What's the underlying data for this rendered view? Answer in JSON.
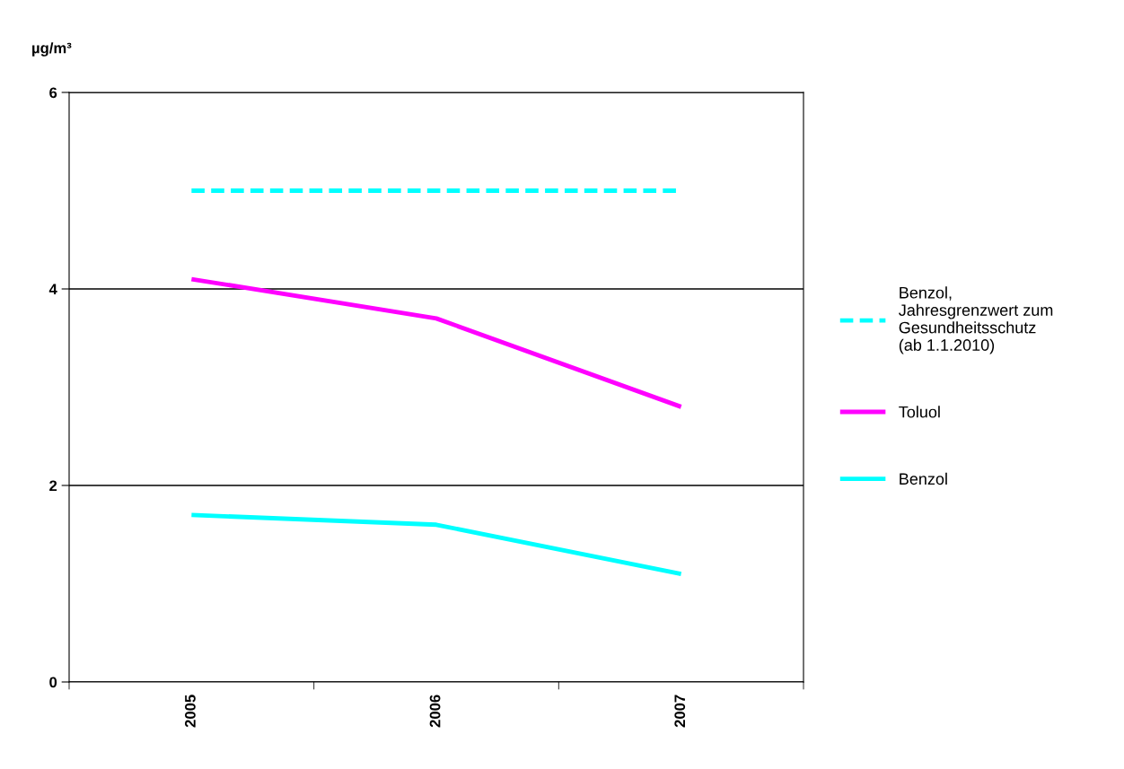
{
  "chart_data": {
    "type": "line",
    "ylabel": "µg/m³",
    "categories": [
      "2005",
      "2006",
      "2007"
    ],
    "series": [
      {
        "name": "Benzol,\nJahresgrenzwert zum\nGesundheitsschutz\n(ab 1.1.2010)",
        "color": "#00ffff",
        "values": [
          5,
          5,
          5
        ],
        "line_style": "dashed"
      },
      {
        "name": "Toluol",
        "color": "#ff00ff",
        "values": [
          4.1,
          3.7,
          2.8
        ],
        "line_style": "solid"
      },
      {
        "name": "Benzol",
        "color": "#00ffff",
        "values": [
          1.7,
          1.6,
          1.1
        ],
        "line_style": "solid"
      }
    ],
    "ylim": [
      0,
      6
    ],
    "yticks": [
      0,
      2,
      4,
      6
    ],
    "grid": "y",
    "legend": "right",
    "marker": "none"
  }
}
